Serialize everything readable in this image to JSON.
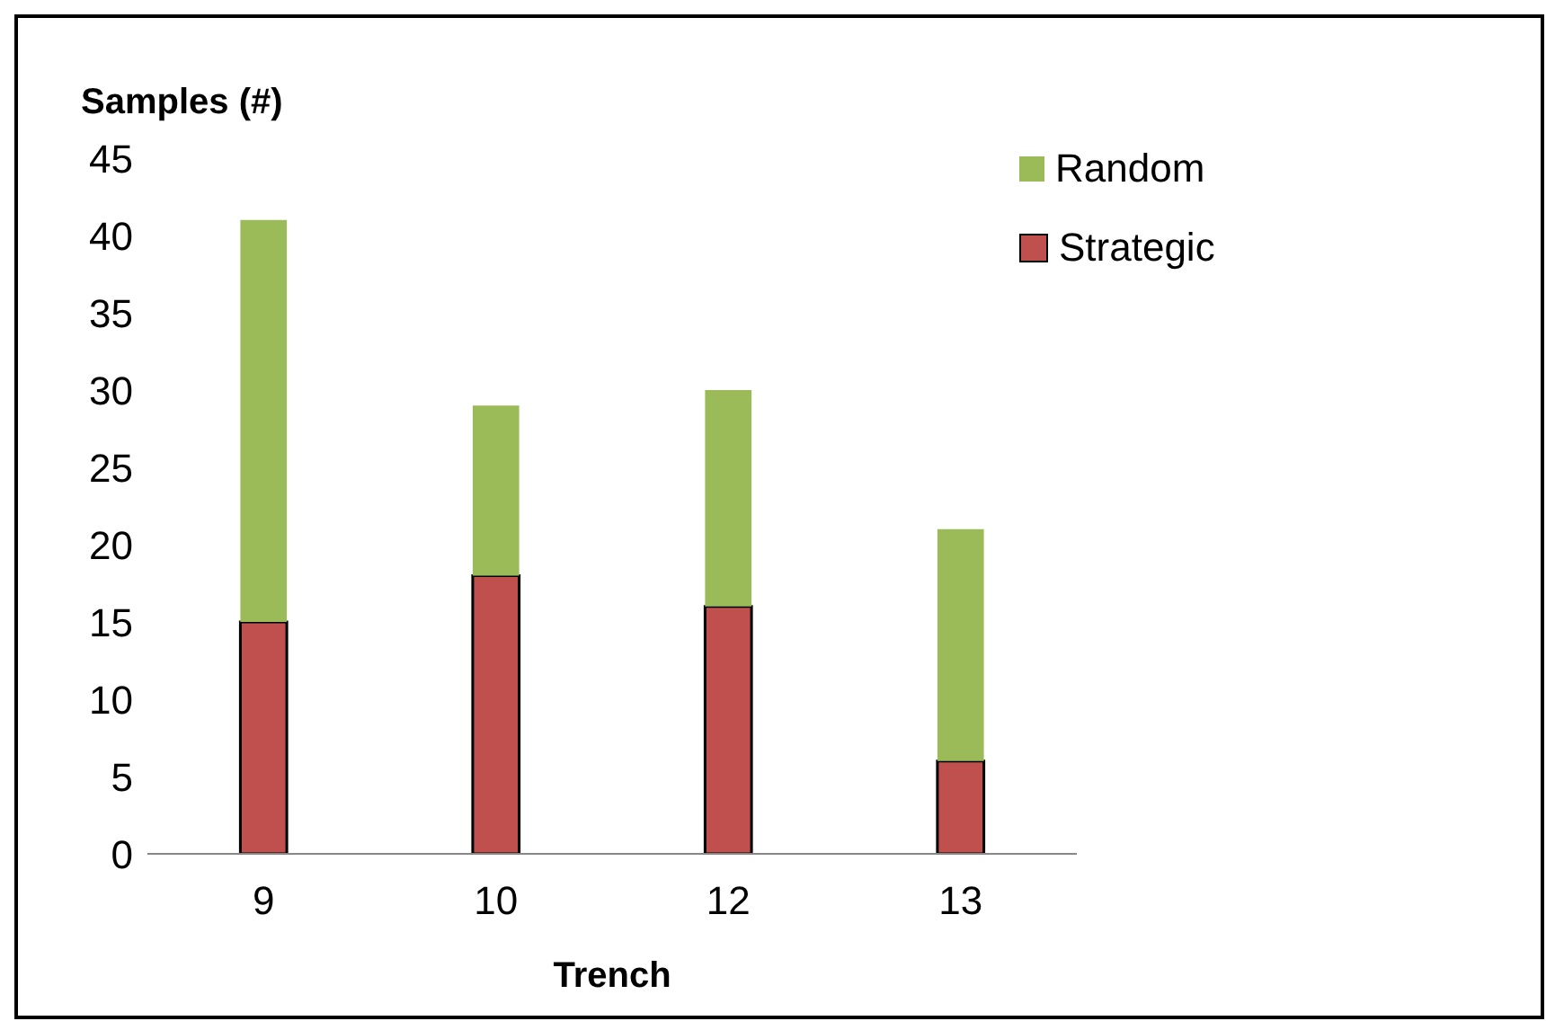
{
  "chart_data": {
    "type": "bar",
    "stacked": true,
    "xlabel": "Trench",
    "ylabel": "Samples (#)",
    "categories": [
      "9",
      "10",
      "12",
      "13"
    ],
    "series": [
      {
        "name": "Strategic",
        "color": "#c0504d",
        "values": [
          15,
          18,
          16,
          6
        ]
      },
      {
        "name": "Random",
        "color": "#9bbb59",
        "values": [
          26,
          11,
          14,
          15
        ]
      }
    ],
    "ylim": [
      0,
      45
    ],
    "yticks": [
      0,
      5,
      10,
      15,
      20,
      25,
      30,
      35,
      40,
      45
    ],
    "grid": false,
    "legend": "top right"
  }
}
